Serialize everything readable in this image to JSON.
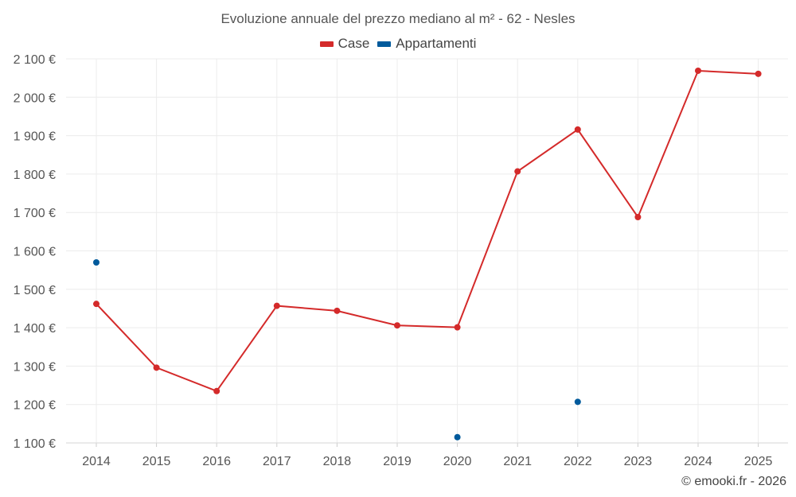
{
  "chart_data": {
    "type": "line",
    "title": "Evoluzione annuale del prezzo mediano al m² - 62 - Nesles",
    "categories": [
      "2014",
      "2015",
      "2016",
      "2017",
      "2018",
      "2019",
      "2020",
      "2021",
      "2022",
      "2023",
      "2024",
      "2025"
    ],
    "series": [
      {
        "name": "Case",
        "color": "#d42a2a",
        "mode": "line",
        "values": [
          1462,
          1296,
          1235,
          1457,
          1444,
          1406,
          1401,
          1807,
          1916,
          1688,
          2069,
          2061
        ]
      },
      {
        "name": "Appartamenti",
        "color": "#005a9c",
        "mode": "markers",
        "values": [
          1570,
          null,
          null,
          null,
          null,
          null,
          1115,
          null,
          1207,
          null,
          null,
          null
        ]
      }
    ],
    "ylim": [
      1100,
      2100
    ],
    "yticks": [
      1100,
      1200,
      1300,
      1400,
      1500,
      1600,
      1700,
      1800,
      1900,
      2000,
      2100
    ],
    "ytick_labels": [
      "1 100 €",
      "1 200 €",
      "1 300 €",
      "1 400 €",
      "1 500 €",
      "1 600 €",
      "1 700 €",
      "1 800 €",
      "1 900 €",
      "2 000 €",
      "2 100 €"
    ],
    "grid": true,
    "legend_position": "top-center"
  },
  "footer": {
    "credit": "© emooki.fr - 2026"
  }
}
